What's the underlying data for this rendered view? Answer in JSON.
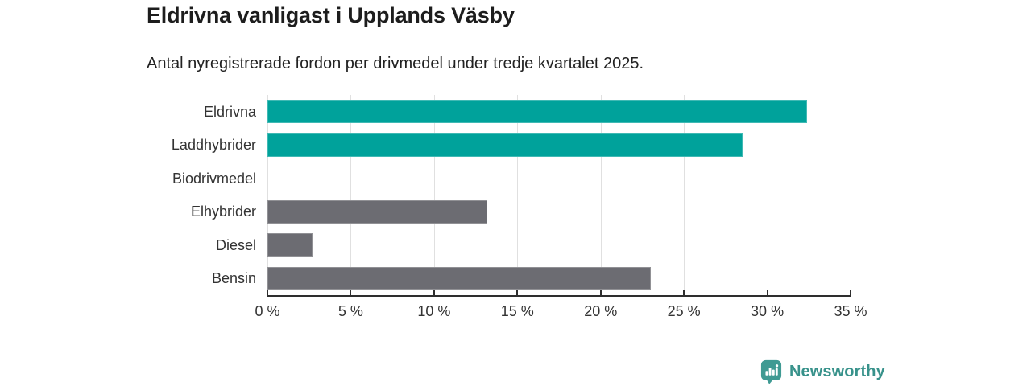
{
  "header": {
    "title": "Eldrivna vanligast i Upplands Väsby",
    "subtitle": "Antal nyregistrerade fordon per drivmedel under tredje kvartalet 2025."
  },
  "chart_data": {
    "type": "bar",
    "orientation": "horizontal",
    "title": "Eldrivna vanligast i Upplands Väsby",
    "subtitle": "Antal nyregistrerade fordon per drivmedel under tredje kvartalet 2025.",
    "categories": [
      "Eldrivna",
      "Laddhybrider",
      "Biodrivmedel",
      "Elhybrider",
      "Diesel",
      "Bensin"
    ],
    "values": [
      32.4,
      28.5,
      0,
      13.2,
      2.7,
      23.0
    ],
    "bar_colors": [
      "#00a29b",
      "#00a29b",
      "#6c6c72",
      "#6c6c72",
      "#6c6c72",
      "#6c6c72"
    ],
    "xlabel": "",
    "ylabel": "",
    "xlim": [
      0,
      35
    ],
    "x_ticks": [
      "0 %",
      "5 %",
      "10 %",
      "15 %",
      "20 %",
      "25 %",
      "30 %",
      "35 %"
    ],
    "x_tick_values": [
      0,
      5,
      10,
      15,
      20,
      25,
      30,
      35
    ],
    "grid": true,
    "legend": "none"
  },
  "footer": {
    "brand": "Newsworthy"
  },
  "colors": {
    "accent_teal": "#00a29b",
    "neutral_gray": "#6c6c72",
    "gridline": "#e0e0e0",
    "axis": "#2e2e2e",
    "text": "#333333",
    "title_text": "#1d1d1d",
    "brand_teal": "#38928b",
    "background": "#ffffff"
  }
}
